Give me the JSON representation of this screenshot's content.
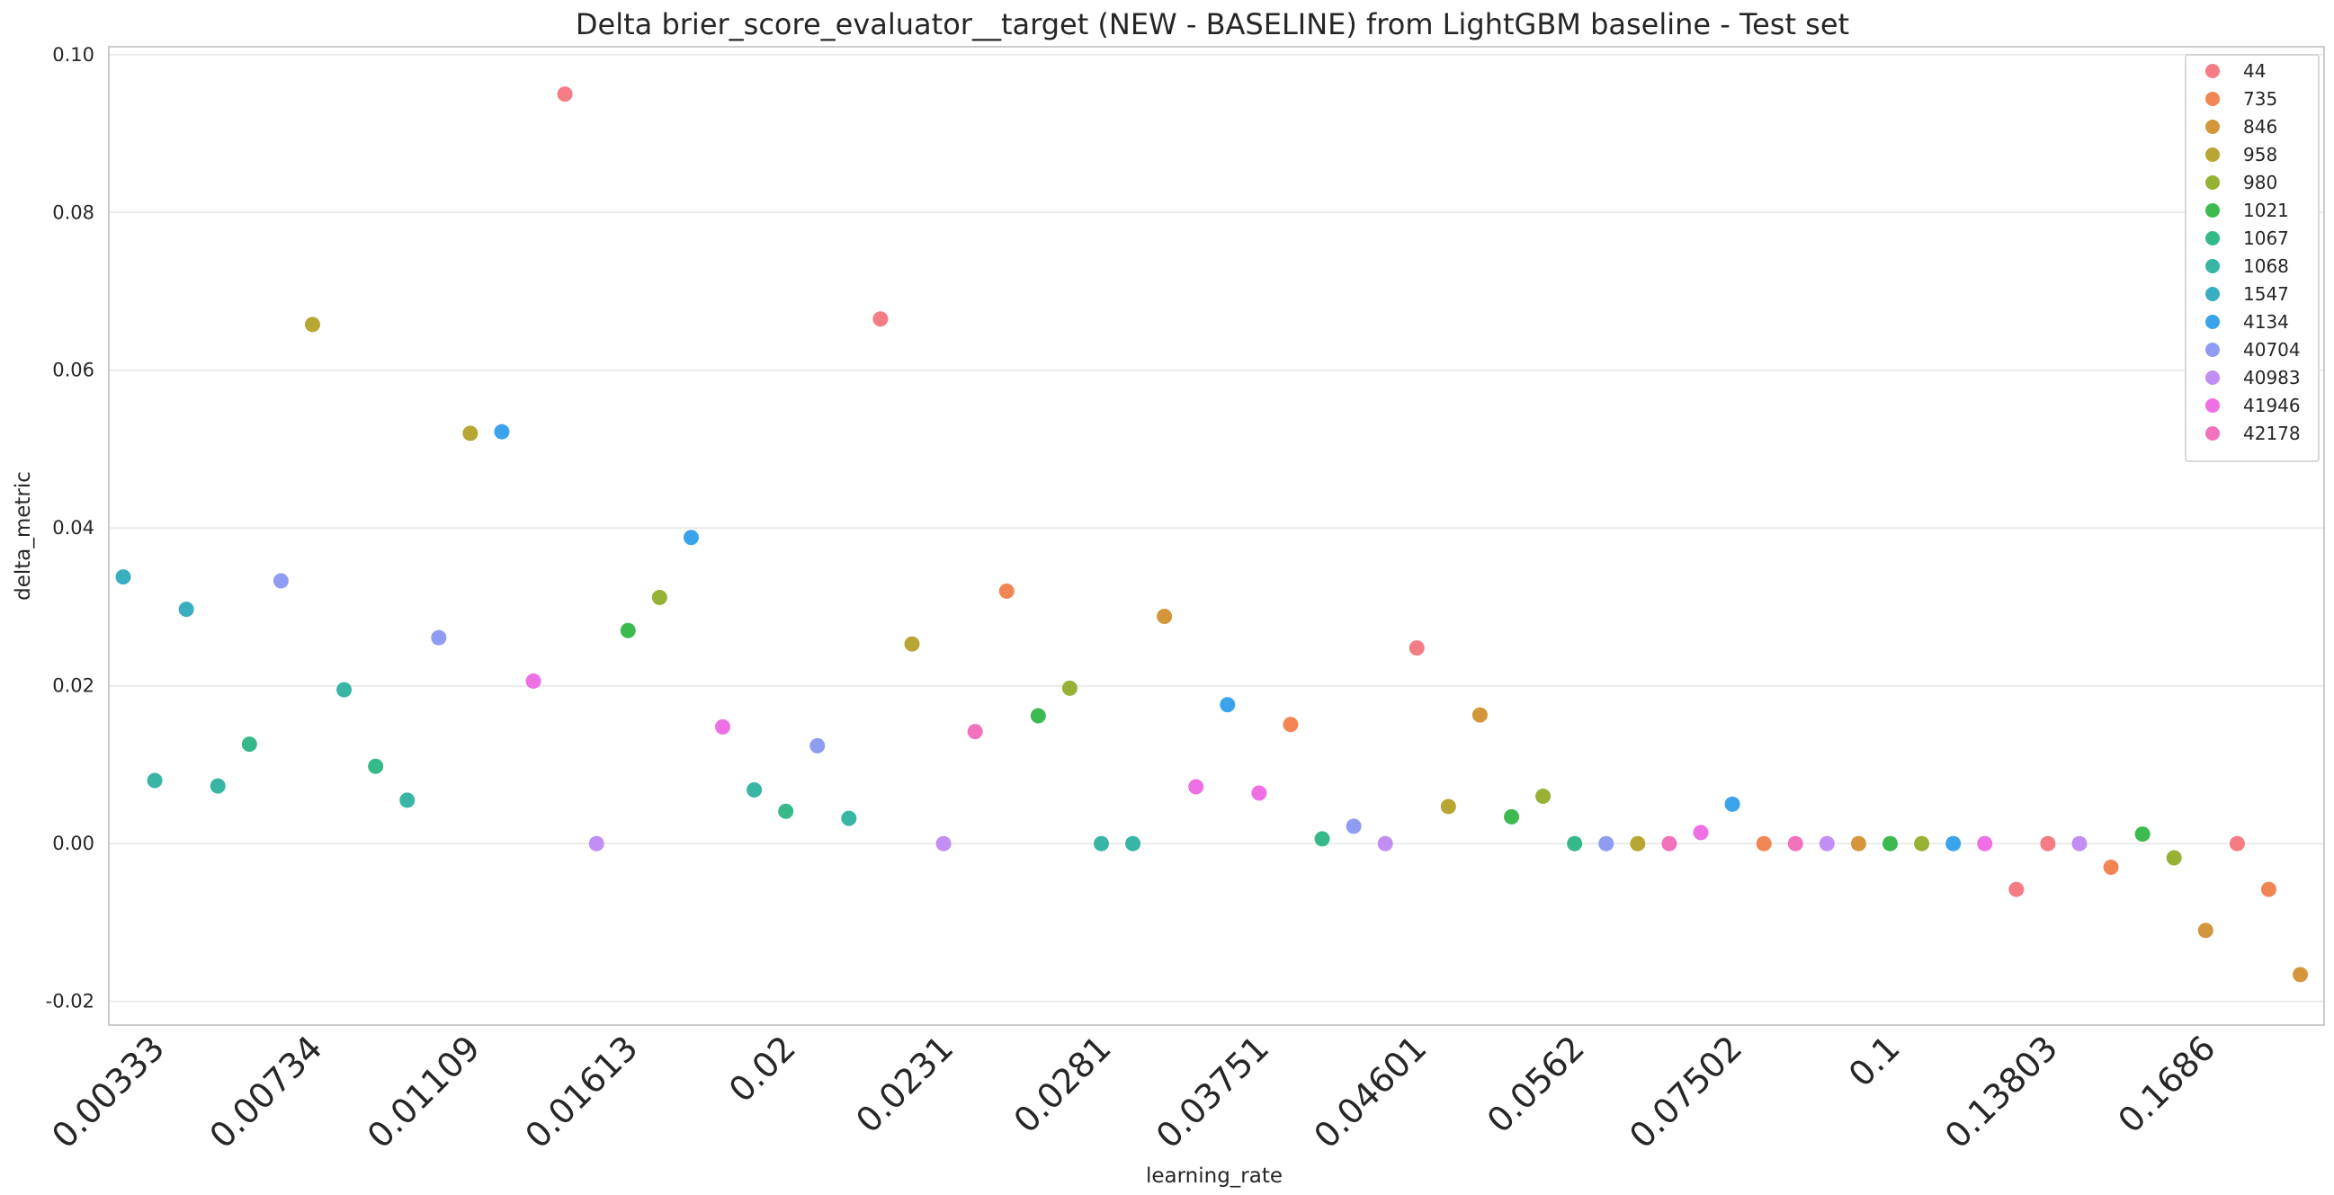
{
  "chart_data": {
    "type": "scatter",
    "title": "Delta brier_score_evaluator__target (NEW - BASELINE) from LightGBM baseline - Test set",
    "xlabel": "learning_rate",
    "ylabel": "delta_metric",
    "ylim": [
      -0.023,
      0.101
    ],
    "yticks": [
      "-0.02",
      "0.00",
      "0.02",
      "0.04",
      "0.06",
      "0.08",
      "0.10"
    ],
    "ytick_values": [
      -0.02,
      0.0,
      0.02,
      0.04,
      0.06,
      0.08,
      0.1
    ],
    "xtick_labels": [
      "0.00333",
      "0.00734",
      "0.01109",
      "0.01613",
      "0.02",
      "0.0231",
      "0.0281",
      "0.03751",
      "0.04601",
      "0.0562",
      "0.07502",
      "0.1",
      "0.13803",
      "0.1686"
    ],
    "xtick_positions": [
      0,
      5,
      10,
      15,
      20,
      25,
      30,
      35,
      40,
      45,
      50,
      55,
      60,
      65
    ],
    "n_categories": 70,
    "grid": "horizontal",
    "legend_position": "top-right",
    "series": [
      {
        "name": "44",
        "color": "#f37c85",
        "points": [
          [
            14,
            0.095
          ],
          [
            24,
            0.0665
          ],
          [
            41,
            0.0248
          ],
          [
            60,
            -0.0058
          ],
          [
            61,
            0.0
          ],
          [
            67,
            0.0
          ]
        ]
      },
      {
        "name": "735",
        "color": "#f18654",
        "points": [
          [
            28,
            0.032
          ],
          [
            37,
            0.0151
          ],
          [
            52,
            0.0
          ],
          [
            63,
            -0.003
          ],
          [
            68,
            -0.0058
          ]
        ]
      },
      {
        "name": "846",
        "color": "#d4963b",
        "points": [
          [
            33,
            0.0288
          ],
          [
            43,
            0.0163
          ],
          [
            55,
            0.0
          ],
          [
            66,
            -0.011
          ],
          [
            69,
            -0.0166
          ]
        ]
      },
      {
        "name": "958",
        "color": "#b7a534",
        "points": [
          [
            6,
            0.0658
          ],
          [
            11,
            0.052
          ],
          [
            25,
            0.0253
          ],
          [
            42,
            0.0047
          ],
          [
            48,
            0.0
          ]
        ]
      },
      {
        "name": "980",
        "color": "#97b135",
        "points": [
          [
            17,
            0.0312
          ],
          [
            30,
            0.0197
          ],
          [
            45,
            0.006
          ],
          [
            57,
            0.0
          ],
          [
            65,
            -0.0018
          ]
        ]
      },
      {
        "name": "1021",
        "color": "#3cba4f",
        "points": [
          [
            16,
            0.027
          ],
          [
            29,
            0.0162
          ],
          [
            44,
            0.0034
          ],
          [
            56,
            0.0
          ],
          [
            64,
            0.0012
          ]
        ]
      },
      {
        "name": "1067",
        "color": "#36b989",
        "points": [
          [
            4,
            0.0126
          ],
          [
            8,
            0.0098
          ],
          [
            21,
            0.0041
          ],
          [
            38,
            0.0006
          ],
          [
            46,
            0.0
          ]
        ]
      },
      {
        "name": "1068",
        "color": "#38b5a4",
        "points": [
          [
            1,
            0.008
          ],
          [
            3,
            0.0073
          ],
          [
            7,
            0.0195
          ],
          [
            9,
            0.0055
          ],
          [
            20,
            0.0068
          ],
          [
            23,
            0.0032
          ],
          [
            31,
            0.0
          ],
          [
            32,
            0.0
          ]
        ]
      },
      {
        "name": "1547",
        "color": "#3aaec1",
        "points": [
          [
            0,
            0.0338
          ],
          [
            2,
            0.0297
          ]
        ]
      },
      {
        "name": "4134",
        "color": "#3ba3ec",
        "points": [
          [
            12,
            0.0522
          ],
          [
            18,
            0.0388
          ],
          [
            35,
            0.0176
          ],
          [
            51,
            0.005
          ],
          [
            58,
            0.0
          ]
        ]
      },
      {
        "name": "40704",
        "color": "#8e9cf2",
        "points": [
          [
            5,
            0.0333
          ],
          [
            10,
            0.0261
          ],
          [
            22,
            0.0124
          ],
          [
            39,
            0.0022
          ],
          [
            47,
            0.0
          ]
        ]
      },
      {
        "name": "40983",
        "color": "#c18ef3",
        "points": [
          [
            15,
            0.0
          ],
          [
            26,
            0.0
          ],
          [
            40,
            0.0
          ],
          [
            54,
            0.0
          ],
          [
            62,
            0.0
          ]
        ]
      },
      {
        "name": "41946",
        "color": "#ef70e4",
        "points": [
          [
            13,
            0.0206
          ],
          [
            19,
            0.0148
          ],
          [
            34,
            0.0072
          ],
          [
            36,
            0.0064
          ],
          [
            50,
            0.0014
          ],
          [
            59,
            0.0
          ]
        ]
      },
      {
        "name": "42178",
        "color": "#f272bb",
        "points": [
          [
            27,
            0.0142
          ],
          [
            49,
            0.0
          ],
          [
            53,
            0.0
          ]
        ]
      }
    ]
  }
}
